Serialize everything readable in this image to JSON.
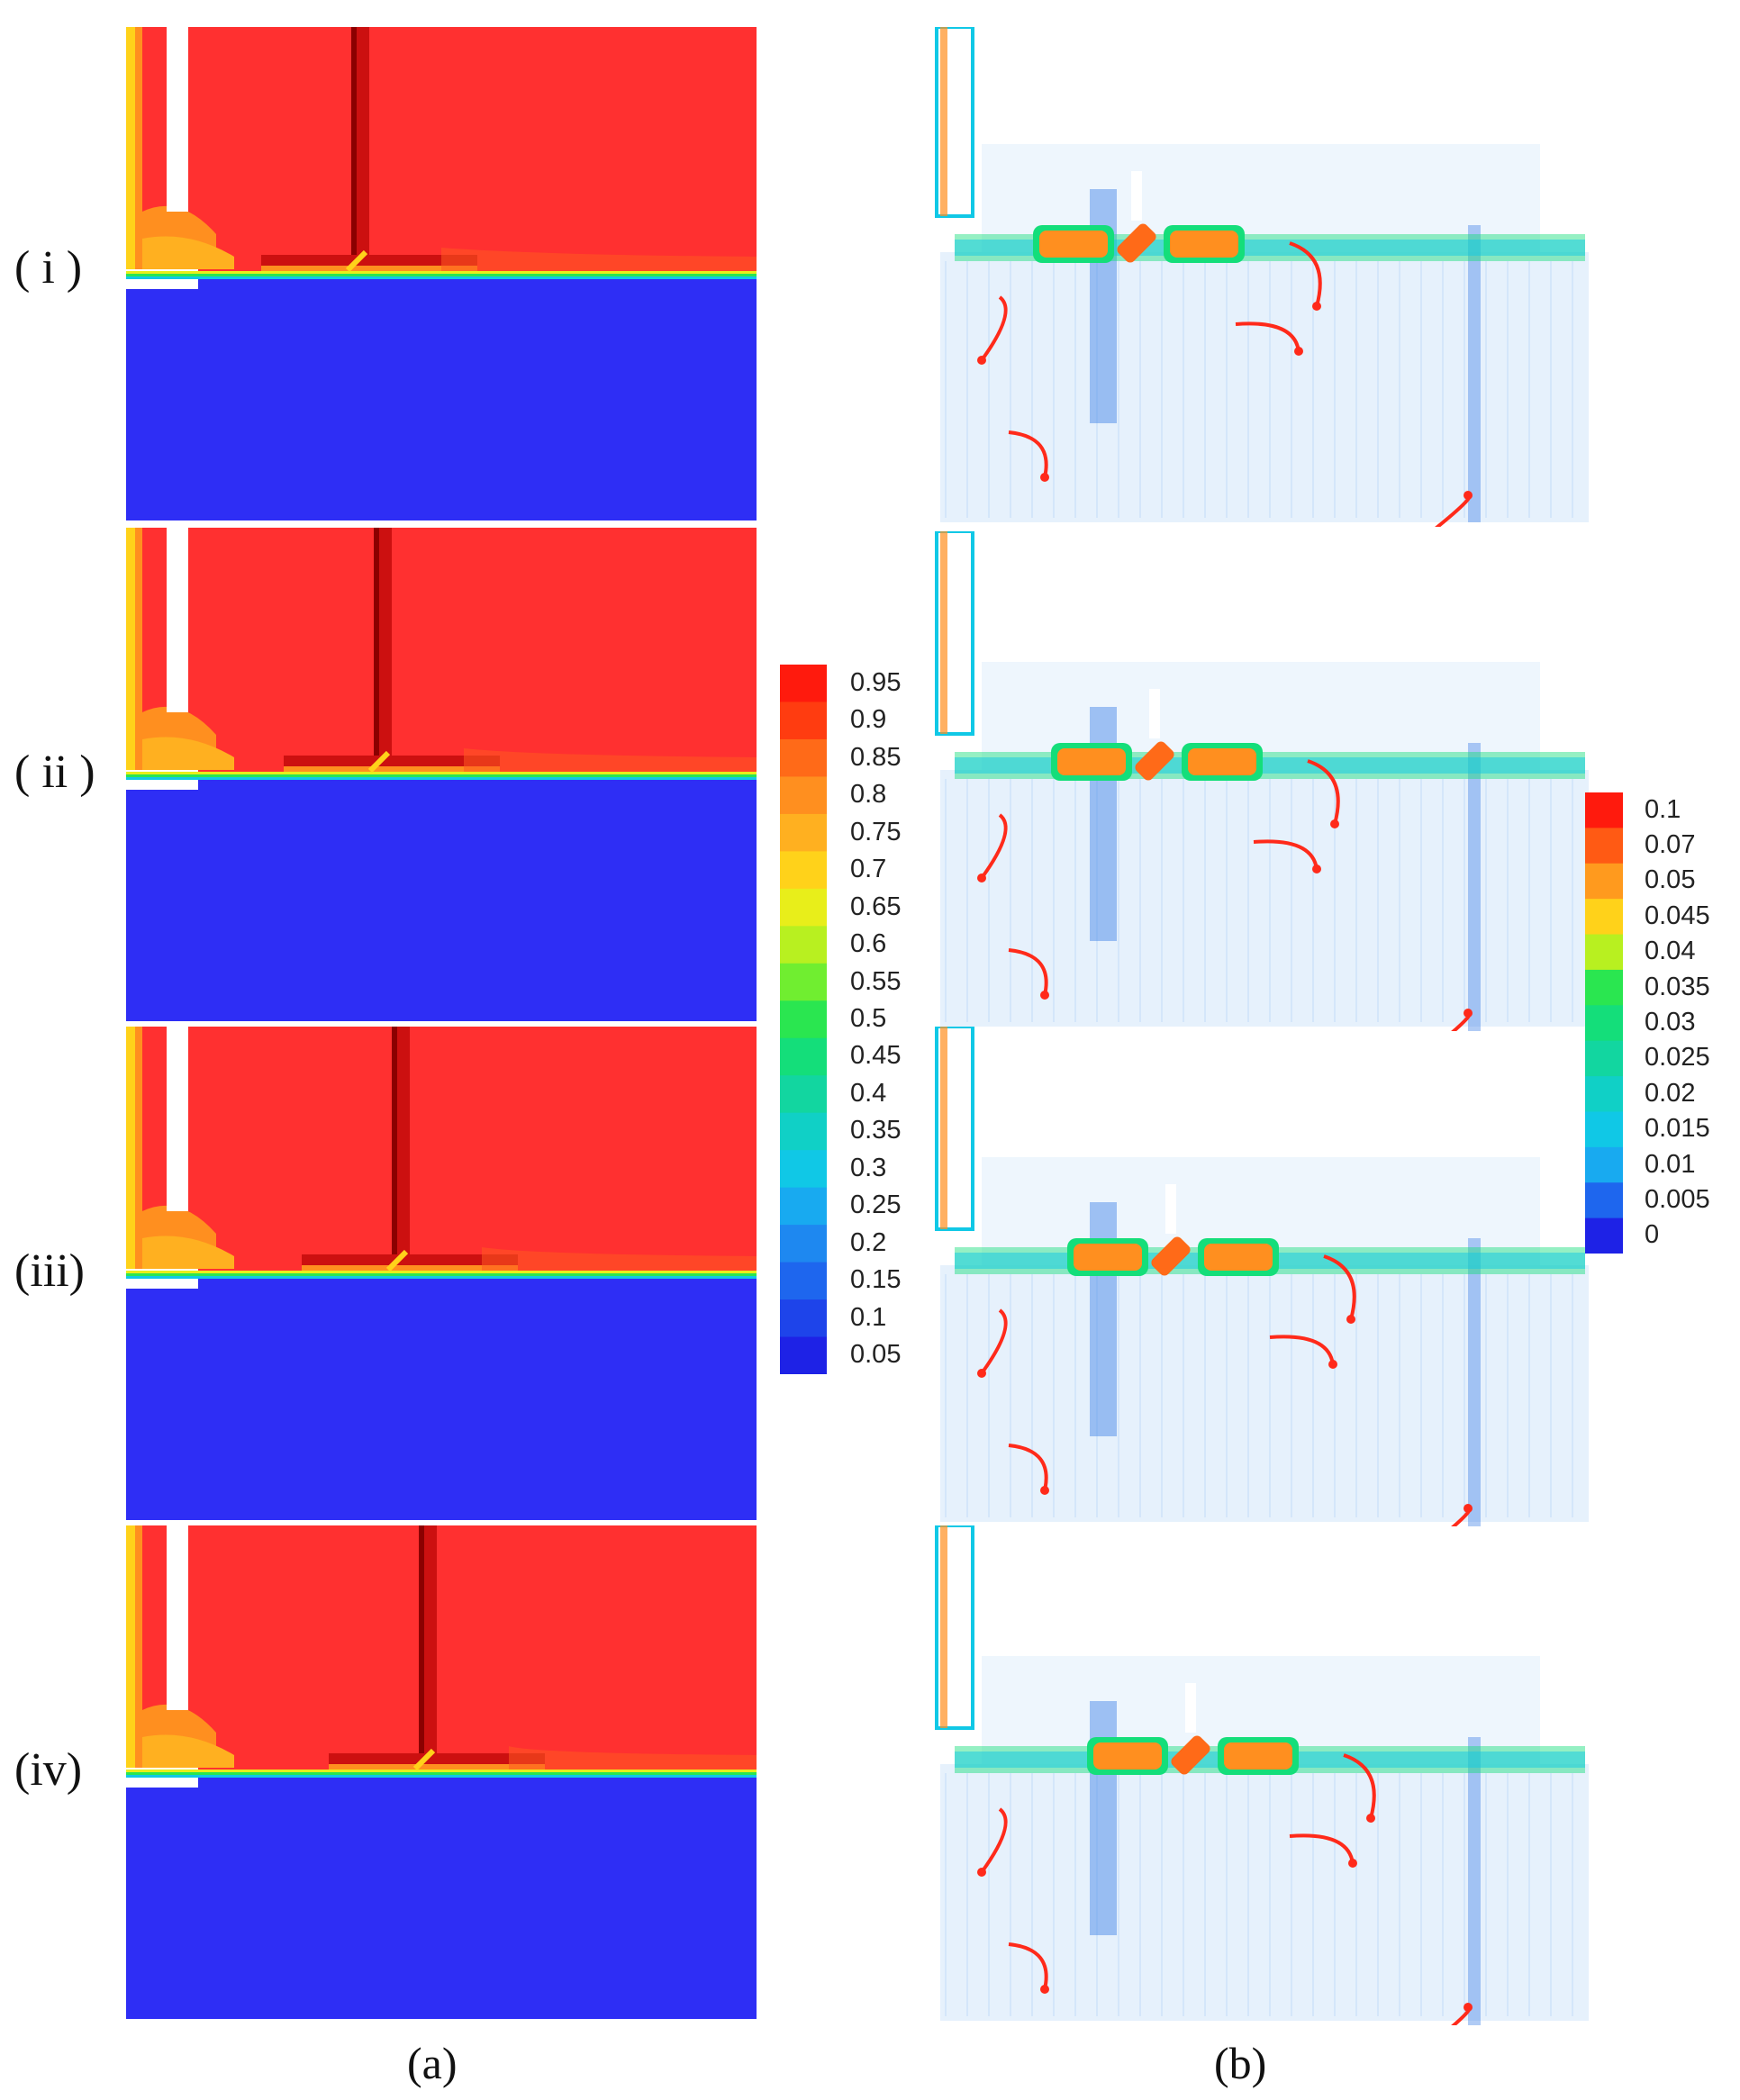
{
  "row_labels": [
    "( i )",
    "( ii )",
    "(iii)",
    "(iv)"
  ],
  "panel_labels": {
    "a": "(a)",
    "b": "(b)"
  },
  "colorbar_a": {
    "ticks": [
      "0.95",
      "0.9",
      "0.85",
      "0.8",
      "0.75",
      "0.7",
      "0.65",
      "0.6",
      "0.55",
      "0.5",
      "0.45",
      "0.4",
      "0.35",
      "0.3",
      "0.25",
      "0.2",
      "0.15",
      "0.1",
      "0.05"
    ],
    "colors": [
      "#ff1a0d",
      "#ff3c10",
      "#ff6a18",
      "#ff8f1f",
      "#ffb020",
      "#ffd21a",
      "#e8ee1a",
      "#b8f020",
      "#70ee30",
      "#2ae650",
      "#14de7a",
      "#12d6a0",
      "#10d0c6",
      "#10c8e6",
      "#18aaf0",
      "#1e88f0",
      "#1e66ee",
      "#1e44ea",
      "#1e22e6"
    ]
  },
  "colorbar_b": {
    "ticks": [
      "0.1",
      "0.07",
      "0.05",
      "0.045",
      "0.04",
      "0.035",
      "0.03",
      "0.025",
      "0.02",
      "0.015",
      "0.01",
      "0.005",
      "0"
    ],
    "colors": [
      "#ff1a0d",
      "#ff5a14",
      "#ff9a1e",
      "#ffd21a",
      "#b8f020",
      "#2ae650",
      "#14de7a",
      "#12d6a0",
      "#10d0c6",
      "#10c8e6",
      "#18aaf0",
      "#1e66ee",
      "#1e22e6"
    ]
  },
  "colors": {
    "air_phase": "#ff3030",
    "water_phase": "#2e2ef5",
    "recirculation_arrow": "#ff2a1a",
    "velocity_field": "#7fb8f0"
  }
}
